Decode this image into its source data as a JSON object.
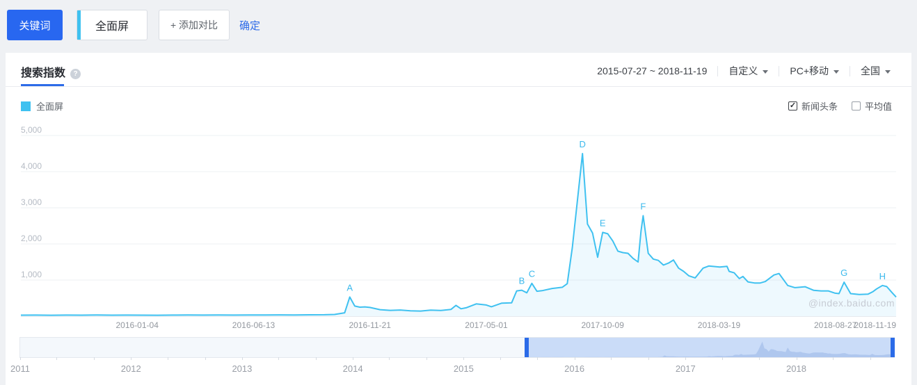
{
  "toolbar": {
    "keyword_label": "关键词",
    "term_value": "全面屏",
    "add_compare_label": "+ 添加对比",
    "confirm_label": "确定"
  },
  "panel": {
    "tab_label": "搜索指数",
    "help_glyph": "?",
    "date_range": "2015-07-27 ~ 2018-11-19",
    "range_mode": "自定义",
    "platform": "PC+移动",
    "region": "全国",
    "legend_name": "全面屏",
    "legend_color": "#3fc1f0",
    "toggle_news": "新闻头条",
    "toggle_news_checked": true,
    "toggle_avg": "平均值",
    "toggle_avg_checked": false,
    "check_glyph": "✓",
    "watermark": "@index.baidu.com"
  },
  "chart_data": {
    "type": "area",
    "title": "全面屏 搜索指数",
    "xlabel": "",
    "ylabel": "",
    "x_start": "2015-07-27",
    "x_end": "2018-11-19",
    "ylim": [
      0,
      5000
    ],
    "y_ticks": [
      1000,
      2000,
      3000,
      4000,
      5000
    ],
    "x_ticks": [
      "2016-01-04",
      "2016-06-13",
      "2016-11-21",
      "2017-05-01",
      "2017-10-09",
      "2018-03-19",
      "2018-08-27",
      "2018-11-19"
    ],
    "grid": true,
    "legend_position": "top-left",
    "line_color": "#3fc1f0",
    "area_color": "rgba(63,193,240,0.09)",
    "series": [
      {
        "name": "全面屏",
        "points": [
          [
            "2015-07-27",
            28
          ],
          [
            "2015-08-17",
            30
          ],
          [
            "2015-09-07",
            27
          ],
          [
            "2015-09-28",
            31
          ],
          [
            "2015-10-19",
            29
          ],
          [
            "2015-11-09",
            32
          ],
          [
            "2015-11-30",
            28
          ],
          [
            "2015-12-21",
            30
          ],
          [
            "2016-01-11",
            29
          ],
          [
            "2016-02-01",
            26
          ],
          [
            "2016-02-22",
            31
          ],
          [
            "2016-03-14",
            33
          ],
          [
            "2016-04-04",
            30
          ],
          [
            "2016-04-25",
            34
          ],
          [
            "2016-05-16",
            31
          ],
          [
            "2016-06-06",
            35
          ],
          [
            "2016-06-27",
            33
          ],
          [
            "2016-07-18",
            36
          ],
          [
            "2016-08-08",
            34
          ],
          [
            "2016-08-29",
            38
          ],
          [
            "2016-09-19",
            40
          ],
          [
            "2016-10-03",
            48
          ],
          [
            "2016-10-17",
            95
          ],
          [
            "2016-10-24",
            530
          ],
          [
            "2016-10-31",
            280
          ],
          [
            "2016-11-07",
            250
          ],
          [
            "2016-11-14",
            258
          ],
          [
            "2016-11-21",
            242
          ],
          [
            "2016-12-05",
            180
          ],
          [
            "2016-12-19",
            162
          ],
          [
            "2017-01-02",
            172
          ],
          [
            "2017-01-16",
            150
          ],
          [
            "2017-01-30",
            142
          ],
          [
            "2017-02-13",
            168
          ],
          [
            "2017-02-27",
            158
          ],
          [
            "2017-03-13",
            186
          ],
          [
            "2017-03-20",
            300
          ],
          [
            "2017-03-27",
            205
          ],
          [
            "2017-04-03",
            232
          ],
          [
            "2017-04-17",
            340
          ],
          [
            "2017-05-01",
            310
          ],
          [
            "2017-05-08",
            262
          ],
          [
            "2017-05-22",
            360
          ],
          [
            "2017-06-05",
            372
          ],
          [
            "2017-06-12",
            700
          ],
          [
            "2017-06-19",
            720
          ],
          [
            "2017-06-26",
            648
          ],
          [
            "2017-07-03",
            910
          ],
          [
            "2017-07-10",
            690
          ],
          [
            "2017-07-17",
            705
          ],
          [
            "2017-07-31",
            768
          ],
          [
            "2017-08-14",
            800
          ],
          [
            "2017-08-21",
            900
          ],
          [
            "2017-08-28",
            1900
          ],
          [
            "2017-09-04",
            3200
          ],
          [
            "2017-09-11",
            4500
          ],
          [
            "2017-09-18",
            2550
          ],
          [
            "2017-09-25",
            2300
          ],
          [
            "2017-10-02",
            1630
          ],
          [
            "2017-10-09",
            2320
          ],
          [
            "2017-10-16",
            2280
          ],
          [
            "2017-10-23",
            2080
          ],
          [
            "2017-10-30",
            1800
          ],
          [
            "2017-11-06",
            1760
          ],
          [
            "2017-11-13",
            1740
          ],
          [
            "2017-11-20",
            1600
          ],
          [
            "2017-11-27",
            1500
          ],
          [
            "2017-12-01",
            2350
          ],
          [
            "2017-12-04",
            2780
          ],
          [
            "2017-12-11",
            1740
          ],
          [
            "2017-12-18",
            1580
          ],
          [
            "2017-12-25",
            1545
          ],
          [
            "2018-01-01",
            1415
          ],
          [
            "2018-01-08",
            1470
          ],
          [
            "2018-01-15",
            1555
          ],
          [
            "2018-01-22",
            1330
          ],
          [
            "2018-01-29",
            1240
          ],
          [
            "2018-02-05",
            1120
          ],
          [
            "2018-02-14",
            1060
          ],
          [
            "2018-02-25",
            1330
          ],
          [
            "2018-03-05",
            1390
          ],
          [
            "2018-03-20",
            1360
          ],
          [
            "2018-03-30",
            1380
          ],
          [
            "2018-04-02",
            1240
          ],
          [
            "2018-04-09",
            1200
          ],
          [
            "2018-04-16",
            1040
          ],
          [
            "2018-04-21",
            1100
          ],
          [
            "2018-04-28",
            950
          ],
          [
            "2018-05-07",
            920
          ],
          [
            "2018-05-15",
            920
          ],
          [
            "2018-05-22",
            960
          ],
          [
            "2018-06-03",
            1140
          ],
          [
            "2018-06-10",
            1180
          ],
          [
            "2018-06-22",
            850
          ],
          [
            "2018-07-02",
            790
          ],
          [
            "2018-07-16",
            815
          ],
          [
            "2018-07-28",
            715
          ],
          [
            "2018-08-07",
            700
          ],
          [
            "2018-08-17",
            700
          ],
          [
            "2018-08-26",
            640
          ],
          [
            "2018-09-01",
            625
          ],
          [
            "2018-09-08",
            940
          ],
          [
            "2018-09-17",
            625
          ],
          [
            "2018-09-29",
            600
          ],
          [
            "2018-10-11",
            610
          ],
          [
            "2018-10-18",
            680
          ],
          [
            "2018-10-23",
            755
          ],
          [
            "2018-10-31",
            850
          ],
          [
            "2018-11-06",
            820
          ],
          [
            "2018-11-13",
            660
          ],
          [
            "2018-11-19",
            530
          ]
        ]
      }
    ],
    "markers": [
      {
        "label": "A",
        "date": "2016-10-24",
        "value": 530
      },
      {
        "label": "B",
        "date": "2017-06-19",
        "value": 720
      },
      {
        "label": "C",
        "date": "2017-07-03",
        "value": 910
      },
      {
        "label": "D",
        "date": "2017-09-11",
        "value": 4500
      },
      {
        "label": "E",
        "date": "2017-10-09",
        "value": 2320
      },
      {
        "label": "F",
        "date": "2017-12-04",
        "value": 2780
      },
      {
        "label": "G",
        "date": "2018-09-08",
        "value": 940
      },
      {
        "label": "H",
        "date": "2018-10-31",
        "value": 850
      }
    ]
  },
  "slider": {
    "range_start": "2011-01-01",
    "range_end": "2018-11-19",
    "selection_start": "2015-07-27",
    "selection_end": "2018-11-19",
    "years": [
      "2011",
      "2012",
      "2013",
      "2014",
      "2015",
      "2016",
      "2017",
      "2018"
    ],
    "selection_color": "#cadcf8",
    "handle_color": "#2b6be8"
  }
}
